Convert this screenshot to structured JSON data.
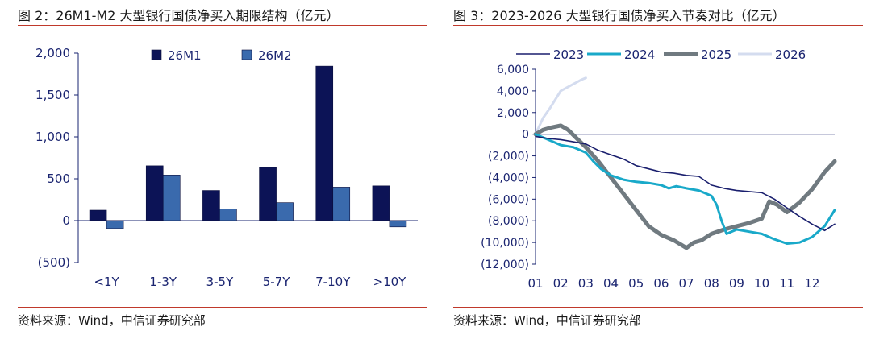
{
  "left": {
    "figure_title": "图 2：26M1-M2 大型银行国债净买入期限结构（亿元）",
    "source": "资料来源：Wind，中信证券研究部",
    "colors": {
      "series1": "#0c1356",
      "series2": "#3a6aad",
      "axis": "#1a2470"
    }
  },
  "right": {
    "figure_title": "图 3：2023-2026 大型银行国债净买入节奏对比（亿元）",
    "source": "资料来源：Wind，中信证券研究部",
    "colors": {
      "2023": "#1a1f6e",
      "2024": "#19a9c9",
      "2025": "#707a80",
      "2026": "#d4dcef",
      "axis": "#1a2470"
    }
  },
  "chart_data": [
    {
      "type": "bar",
      "title": "26M1-M2 大型银行国债净买入期限结构（亿元）",
      "xlabel": "",
      "ylabel": "",
      "categories": [
        "<1Y",
        "1-3Y",
        "3-5Y",
        "5-7Y",
        "7-10Y",
        ">10Y"
      ],
      "series": [
        {
          "name": "26M1",
          "values": [
            125,
            655,
            360,
            635,
            1845,
            415
          ]
        },
        {
          "name": "26M2",
          "values": [
            -95,
            545,
            140,
            215,
            400,
            -75
          ]
        }
      ],
      "ylim": [
        -500,
        2000
      ],
      "yticks": [
        2000,
        1500,
        1000,
        500,
        0,
        -500
      ],
      "ytick_labels": [
        "2,000",
        "1,500",
        "1,000",
        "500",
        "0",
        "(500)"
      ],
      "legend": "top"
    },
    {
      "type": "line",
      "title": "2023-2026 大型银行国债净买入节奏对比（亿元）",
      "xlabel": "",
      "ylabel": "",
      "x_tick_labels": [
        "01",
        "02",
        "03",
        "04",
        "05",
        "06",
        "07",
        "08",
        "09",
        "10",
        "11",
        "12"
      ],
      "xlim": [
        1,
        12.9
      ],
      "ylim": [
        -12000,
        6000
      ],
      "yticks": [
        6000,
        4000,
        2000,
        0,
        -2000,
        -4000,
        -6000,
        -8000,
        -10000,
        -12000
      ],
      "ytick_labels": [
        "6,000",
        "4,000",
        "2,000",
        "0",
        "(2,000)",
        "(4,000)",
        "(6,000)",
        "(8,000)",
        "(10,000)",
        "(12,000)"
      ],
      "legend": "top",
      "series": [
        {
          "name": "2023",
          "x": [
            1,
            1.5,
            2,
            2.5,
            3,
            3.5,
            4,
            4.5,
            5,
            5.5,
            6,
            6.5,
            7,
            7.5,
            8,
            8.5,
            9,
            9.5,
            10,
            10.5,
            11,
            11.5,
            12,
            12.5,
            12.9
          ],
          "y": [
            -200,
            -400,
            -500,
            -700,
            -900,
            -1500,
            -1900,
            -2300,
            -2900,
            -3200,
            -3500,
            -3600,
            -3800,
            -3900,
            -4700,
            -5000,
            -5200,
            -5300,
            -5400,
            -6000,
            -6800,
            -7600,
            -8300,
            -8900,
            -8300
          ]
        },
        {
          "name": "2024",
          "x": [
            1,
            1.5,
            2,
            2.5,
            3,
            3.3,
            3.6,
            4,
            4.5,
            5,
            5.5,
            6,
            6.3,
            6.6,
            7,
            7.5,
            8,
            8.2,
            8.4,
            8.6,
            9,
            9.5,
            10,
            10.5,
            11,
            11.5,
            12,
            12.5,
            12.9
          ],
          "y": [
            0,
            -500,
            -1000,
            -1200,
            -1700,
            -2500,
            -3200,
            -3800,
            -4200,
            -4400,
            -4500,
            -4700,
            -5000,
            -4800,
            -5000,
            -5200,
            -5700,
            -6500,
            -8000,
            -9200,
            -8800,
            -9000,
            -9200,
            -9700,
            -10100,
            -10000,
            -9500,
            -8500,
            -7000
          ]
        },
        {
          "name": "2025",
          "x": [
            1,
            1.3,
            1.6,
            2,
            2.3,
            2.6,
            3,
            3.5,
            4,
            4.5,
            5,
            5.5,
            6,
            6.5,
            7,
            7.3,
            7.6,
            8,
            8.5,
            9,
            9.5,
            10,
            10.3,
            10.6,
            11,
            11.5,
            12,
            12.5,
            12.9
          ],
          "y": [
            0,
            400,
            600,
            800,
            400,
            -300,
            -1200,
            -2500,
            -4000,
            -5500,
            -7000,
            -8500,
            -9300,
            -9800,
            -10500,
            -10000,
            -9800,
            -9200,
            -8800,
            -8500,
            -8200,
            -7800,
            -6200,
            -6500,
            -7200,
            -6300,
            -5100,
            -3500,
            -2500
          ]
        },
        {
          "name": "2026",
          "x": [
            1,
            1.3,
            1.6,
            2,
            2.4,
            2.8,
            3
          ],
          "y": [
            0,
            1500,
            2500,
            4000,
            4500,
            5000,
            5200
          ]
        }
      ]
    }
  ]
}
